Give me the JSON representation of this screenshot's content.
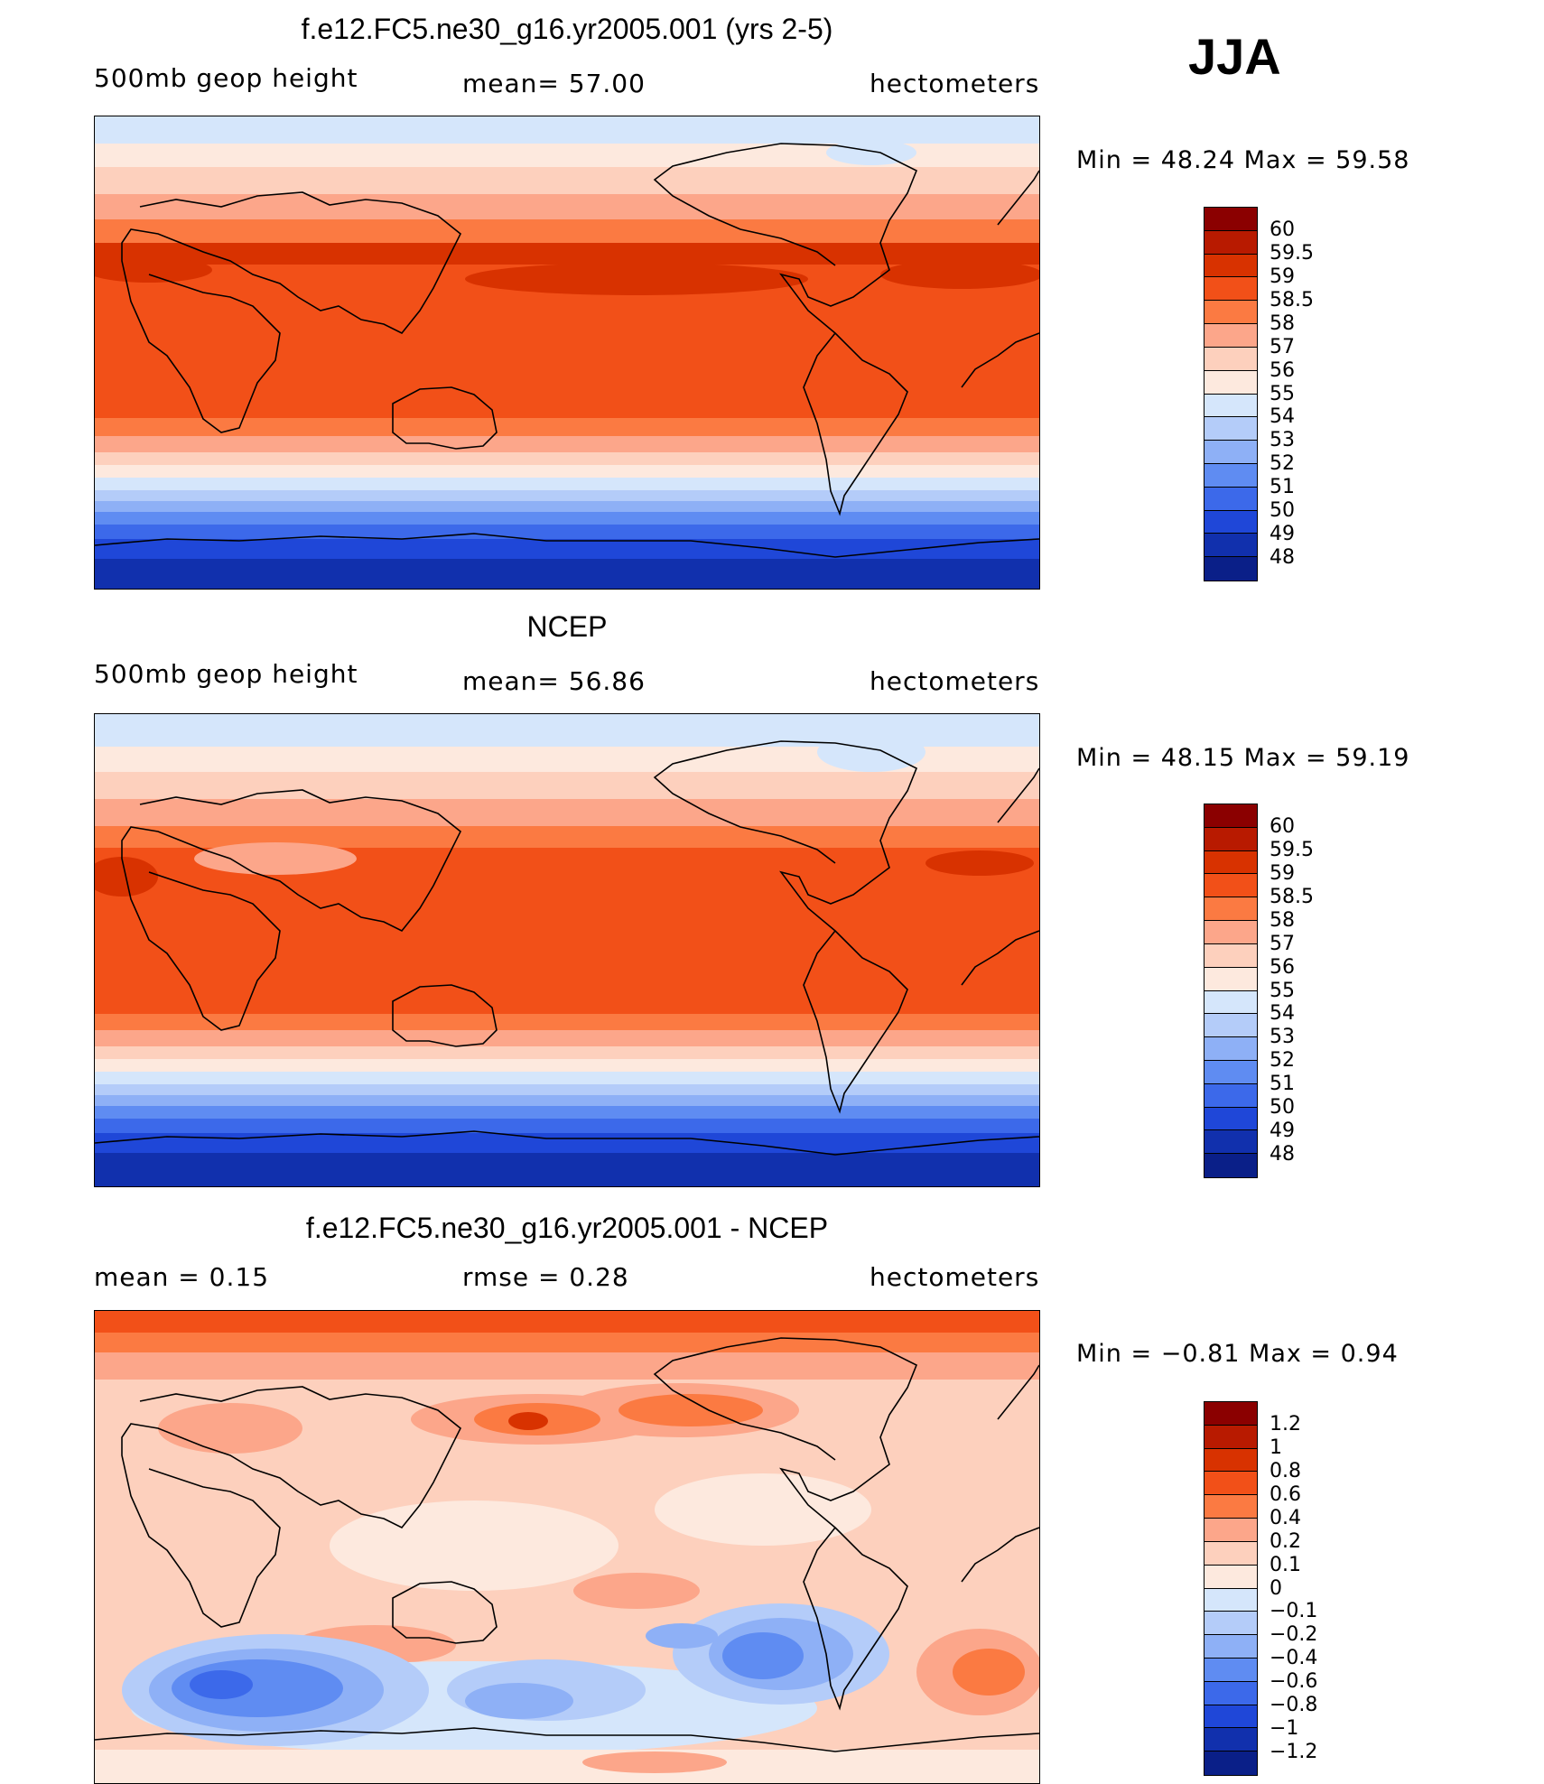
{
  "season": "JJA",
  "panels": [
    {
      "title": "f.e12.FC5.ne30_g16.yr2005.001 (yrs 2-5)",
      "left_label": "500mb  geop  height",
      "center_label": "mean=   57.00",
      "right_label": "hectometers",
      "minmax": "Min  =    48.24  Max  =    59.58",
      "colorbar": {
        "colors": [
          "#8b0000",
          "#b81a00",
          "#d83200",
          "#f25018",
          "#fb7a42",
          "#fca68a",
          "#fdd0bd",
          "#fde9de",
          "#d5e6fb",
          "#b4ccf9",
          "#8eb0f6",
          "#5f8cf2",
          "#3c69ea",
          "#1f47d8",
          "#1130ad",
          "#0a1f88"
        ],
        "ticks": [
          "60",
          "59.5",
          "59",
          "58.5",
          "58",
          "57",
          "56",
          "55",
          "54",
          "53",
          "52",
          "51",
          "50",
          "49",
          "48"
        ]
      }
    },
    {
      "title": "NCEP",
      "left_label": "500mb  geop  height",
      "center_label": "mean=   56.86",
      "right_label": "hectometers",
      "minmax": "Min  =    48.15  Max  =    59.19",
      "colorbar": {
        "colors": [
          "#8b0000",
          "#b81a00",
          "#d83200",
          "#f25018",
          "#fb7a42",
          "#fca68a",
          "#fdd0bd",
          "#fde9de",
          "#d5e6fb",
          "#b4ccf9",
          "#8eb0f6",
          "#5f8cf2",
          "#3c69ea",
          "#1f47d8",
          "#1130ad",
          "#0a1f88"
        ],
        "ticks": [
          "60",
          "59.5",
          "59",
          "58.5",
          "58",
          "57",
          "56",
          "55",
          "54",
          "53",
          "52",
          "51",
          "50",
          "49",
          "48"
        ]
      }
    },
    {
      "title": "f.e12.FC5.ne30_g16.yr2005.001 - NCEP",
      "left_label": "mean  =      0.15",
      "center_label": "rmse  =      0.28",
      "right_label": "hectometers",
      "minmax": "Min  =    −0.81  Max  =      0.94",
      "colorbar": {
        "colors": [
          "#8b0000",
          "#b81a00",
          "#d83200",
          "#f25018",
          "#fb7a42",
          "#fca68a",
          "#fdd0bd",
          "#fde9de",
          "#d5e6fb",
          "#b4ccf9",
          "#8eb0f6",
          "#5f8cf2",
          "#3c69ea",
          "#1f47d8",
          "#1130ad",
          "#0a1f88"
        ],
        "ticks": [
          "1.2",
          "1",
          "0.8",
          "0.6",
          "0.4",
          "0.2",
          "0.1",
          "0",
          "−0.1",
          "−0.2",
          "−0.4",
          "−0.6",
          "−0.8",
          "−1",
          "−1.2"
        ]
      }
    }
  ]
}
